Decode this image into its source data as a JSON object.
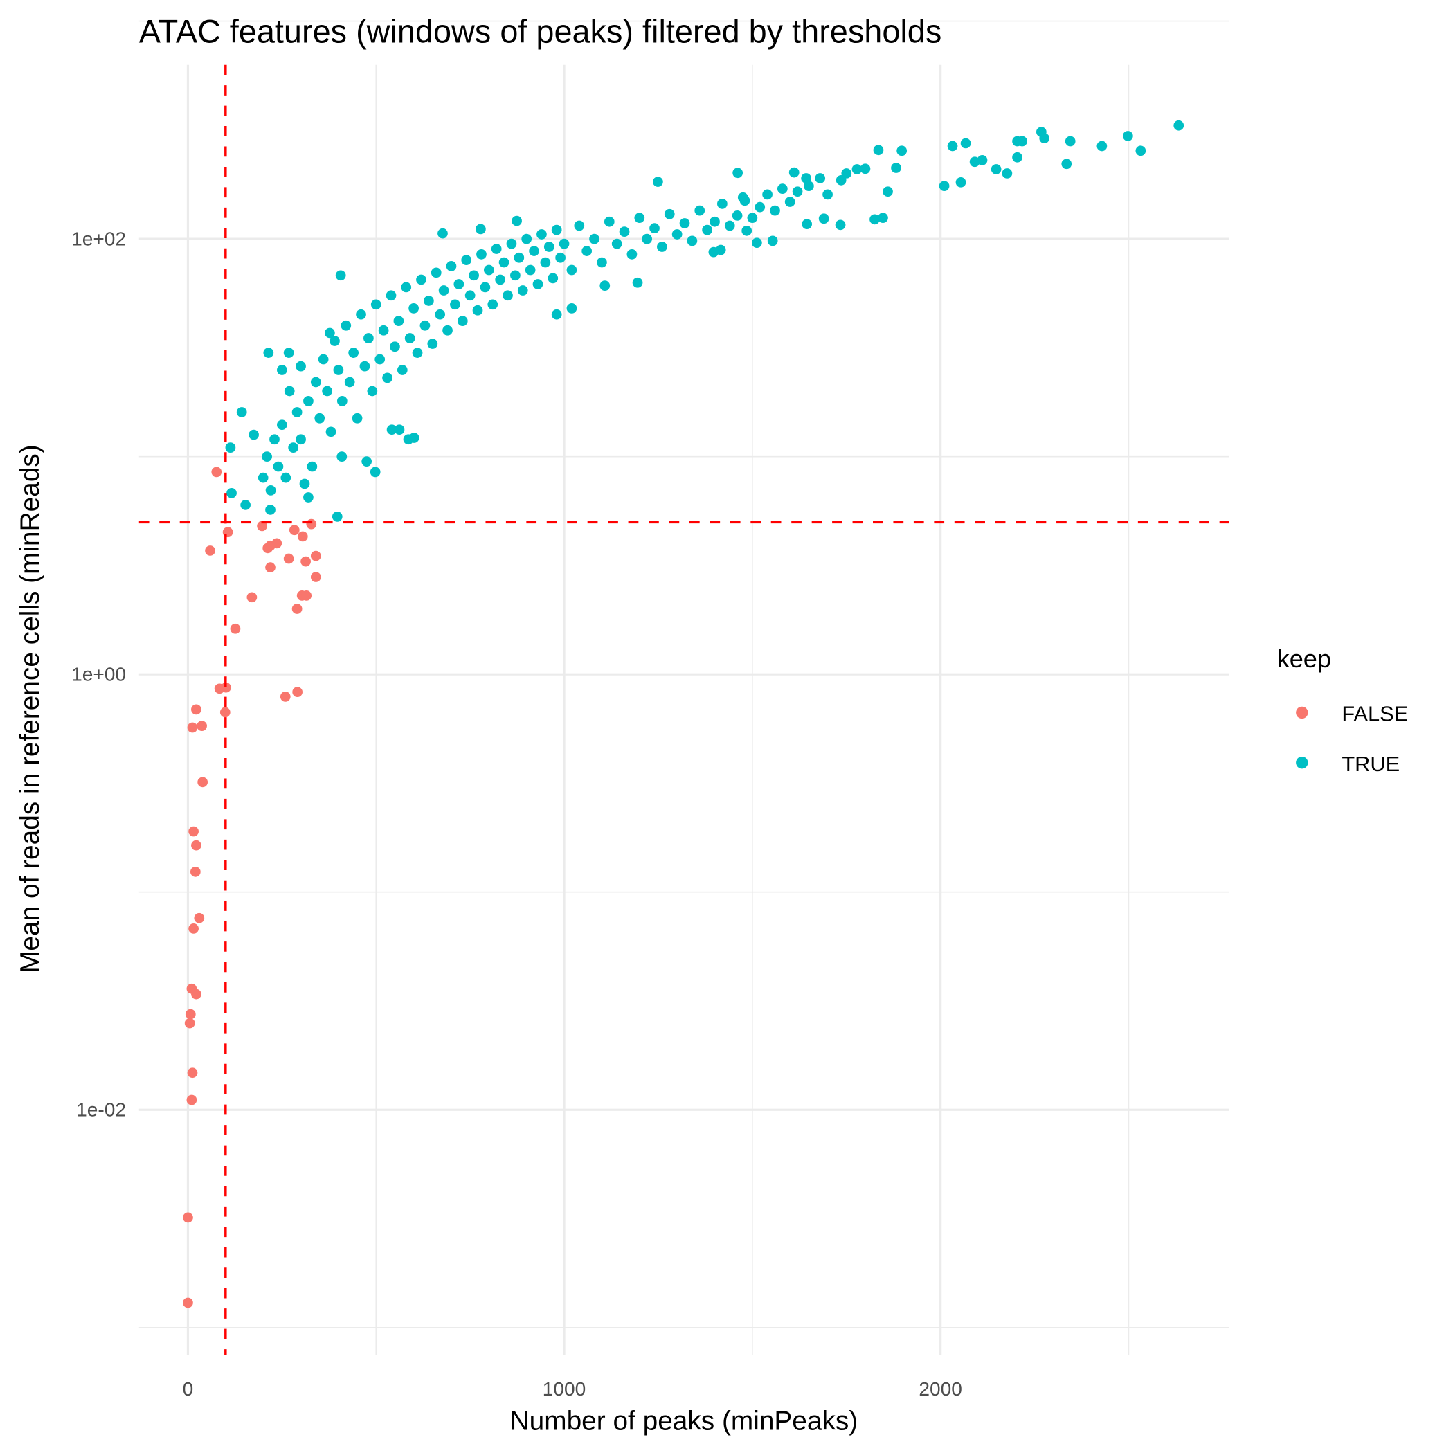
{
  "chart_data": {
    "type": "scatter",
    "title": "ATAC features (windows of peaks) filtered by thresholds",
    "xlabel": "Number of peaks (minPeaks)",
    "ylabel": "Mean of reads in reference cells (minReads)",
    "x_scale": "linear",
    "y_scale": "log10",
    "xlim": [
      -130,
      2766
    ],
    "ylim": [
      0.00075,
      630
    ],
    "x_ticks": [
      0,
      1000,
      2000
    ],
    "x_tick_labels": [
      "0",
      "1000",
      "2000"
    ],
    "y_ticks": [
      100,
      1,
      0.01
    ],
    "y_tick_labels": [
      "1e+02",
      "1e+00",
      "1e-02"
    ],
    "grid": true,
    "thresholds": {
      "minPeaks": 100,
      "minReads": 5,
      "color": "#FF0000",
      "style": "dashed"
    },
    "legend": {
      "title": "keep",
      "placement": "right",
      "entries": [
        {
          "label": "FALSE",
          "color": "#F8766D"
        },
        {
          "label": "TRUE",
          "color": "#00BFC4"
        }
      ]
    },
    "series": [
      {
        "name": "FALSE",
        "color": "#F8766D",
        "points": [
          [
            76,
            8.5
          ],
          [
            106,
            4.5
          ],
          [
            59,
            3.7
          ],
          [
            197,
            4.8
          ],
          [
            212,
            3.8
          ],
          [
            219,
            3.9
          ],
          [
            236,
            4.0
          ],
          [
            219,
            3.1
          ],
          [
            268,
            3.4
          ],
          [
            313,
            3.3
          ],
          [
            340,
            3.5
          ],
          [
            283,
            4.6
          ],
          [
            305,
            4.3
          ],
          [
            328,
            4.9
          ],
          [
            340,
            2.8
          ],
          [
            170,
            2.26
          ],
          [
            290,
            2.0
          ],
          [
            303,
            2.3
          ],
          [
            315,
            2.3
          ],
          [
            126,
            1.62
          ],
          [
            84,
            0.86
          ],
          [
            101,
            0.87
          ],
          [
            99,
            0.67
          ],
          [
            259,
            0.79
          ],
          [
            291,
            0.83
          ],
          [
            22,
            0.69
          ],
          [
            12,
            0.57
          ],
          [
            37,
            0.58
          ],
          [
            39,
            0.32
          ],
          [
            15,
            0.19
          ],
          [
            22,
            0.164
          ],
          [
            20,
            0.124
          ],
          [
            30,
            0.076
          ],
          [
            15,
            0.068
          ],
          [
            10,
            0.036
          ],
          [
            22,
            0.034
          ],
          [
            7,
            0.0275
          ],
          [
            5,
            0.025
          ],
          [
            12,
            0.0148
          ],
          [
            10,
            0.0111
          ],
          [
            0,
            0.0032
          ],
          [
            0,
            0.0013
          ]
        ]
      },
      {
        "name": "TRUE",
        "color": "#00BFC4",
        "points": [
          [
            2633,
            332
          ],
          [
            2498,
            297
          ],
          [
            2532,
            254
          ],
          [
            2429,
            267
          ],
          [
            2345,
            281
          ],
          [
            2335,
            221
          ],
          [
            2268,
            310
          ],
          [
            2276,
            290
          ],
          [
            2204,
            281
          ],
          [
            2217,
            281
          ],
          [
            2204,
            237
          ],
          [
            2177,
            200
          ],
          [
            2067,
            275
          ],
          [
            2032,
            267
          ],
          [
            2010,
            175
          ],
          [
            2054,
            182
          ],
          [
            2091,
            226
          ],
          [
            2111,
            230
          ],
          [
            2148,
            209
          ],
          [
            1897,
            254
          ],
          [
            1835,
            256
          ],
          [
            1860,
            165
          ],
          [
            1825,
            123
          ],
          [
            1847,
            125
          ],
          [
            1734,
            116
          ],
          [
            1690,
            124
          ],
          [
            1645,
            117
          ],
          [
            1736,
            186
          ],
          [
            1882,
            212
          ],
          [
            1778,
            209
          ],
          [
            1611,
            202
          ],
          [
            1643,
            190
          ],
          [
            1554,
            98
          ],
          [
            1512,
            96
          ],
          [
            1485,
            109
          ],
          [
            1475,
            155
          ],
          [
            1461,
            201
          ],
          [
            1249,
            183
          ],
          [
            1397,
            87
          ],
          [
            1416,
            89
          ],
          [
            1195,
            63
          ],
          [
            1108,
            61
          ],
          [
            1020,
            48
          ],
          [
            980,
            45
          ],
          [
            874,
            121
          ],
          [
            778,
            111
          ],
          [
            677,
            106
          ],
          [
            406,
            68
          ],
          [
            397,
            5.3
          ],
          [
            498,
            8.5
          ],
          [
            475,
            9.5
          ],
          [
            409,
            10
          ],
          [
            153,
            6.0
          ],
          [
            116,
            6.8
          ],
          [
            113,
            11
          ],
          [
            219,
            5.7
          ],
          [
            143,
            16
          ],
          [
            214,
            30
          ],
          [
            268,
            30
          ],
          [
            377,
            37
          ],
          [
            175,
            12.6
          ],
          [
            586,
            12
          ],
          [
            601,
            12.2
          ],
          [
            542,
            13.3
          ],
          [
            562,
            13.3
          ],
          [
            300,
            12
          ],
          [
            320,
            18
          ],
          [
            330,
            9
          ],
          [
            340,
            22
          ],
          [
            350,
            15
          ],
          [
            360,
            28
          ],
          [
            370,
            20
          ],
          [
            380,
            13
          ],
          [
            390,
            34
          ],
          [
            400,
            25
          ],
          [
            410,
            18
          ],
          [
            420,
            40
          ],
          [
            430,
            22
          ],
          [
            440,
            30
          ],
          [
            450,
            15
          ],
          [
            460,
            45
          ],
          [
            470,
            26
          ],
          [
            480,
            35
          ],
          [
            490,
            20
          ],
          [
            500,
            50
          ],
          [
            510,
            28
          ],
          [
            520,
            38
          ],
          [
            530,
            23
          ],
          [
            540,
            55
          ],
          [
            550,
            32
          ],
          [
            560,
            42
          ],
          [
            570,
            25
          ],
          [
            580,
            60
          ],
          [
            590,
            35
          ],
          [
            600,
            48
          ],
          [
            610,
            30
          ],
          [
            620,
            65
          ],
          [
            630,
            40
          ],
          [
            640,
            52
          ],
          [
            650,
            33
          ],
          [
            660,
            70
          ],
          [
            670,
            45
          ],
          [
            680,
            58
          ],
          [
            690,
            38
          ],
          [
            700,
            75
          ],
          [
            710,
            50
          ],
          [
            720,
            62
          ],
          [
            730,
            42
          ],
          [
            740,
            80
          ],
          [
            750,
            55
          ],
          [
            760,
            68
          ],
          [
            770,
            47
          ],
          [
            780,
            85
          ],
          [
            790,
            60
          ],
          [
            800,
            72
          ],
          [
            810,
            50
          ],
          [
            820,
            90
          ],
          [
            830,
            65
          ],
          [
            840,
            78
          ],
          [
            850,
            55
          ],
          [
            860,
            95
          ],
          [
            870,
            68
          ],
          [
            880,
            82
          ],
          [
            890,
            58
          ],
          [
            900,
            100
          ],
          [
            910,
            72
          ],
          [
            920,
            88
          ],
          [
            930,
            62
          ],
          [
            940,
            105
          ],
          [
            950,
            78
          ],
          [
            960,
            92
          ],
          [
            970,
            66
          ],
          [
            980,
            110
          ],
          [
            990,
            82
          ],
          [
            1000,
            95
          ],
          [
            1020,
            72
          ],
          [
            1040,
            115
          ],
          [
            1060,
            88
          ],
          [
            1080,
            100
          ],
          [
            1100,
            78
          ],
          [
            1120,
            120
          ],
          [
            1140,
            95
          ],
          [
            1160,
            108
          ],
          [
            1180,
            85
          ],
          [
            1200,
            125
          ],
          [
            1220,
            100
          ],
          [
            1240,
            112
          ],
          [
            1260,
            92
          ],
          [
            1280,
            130
          ],
          [
            1300,
            105
          ],
          [
            1320,
            118
          ],
          [
            1340,
            98
          ],
          [
            1360,
            135
          ],
          [
            1380,
            110
          ],
          [
            1400,
            120
          ],
          [
            1420,
            145
          ],
          [
            1440,
            115
          ],
          [
            1460,
            128
          ],
          [
            1480,
            150
          ],
          [
            1500,
            125
          ],
          [
            1520,
            140
          ],
          [
            1540,
            160
          ],
          [
            1560,
            135
          ],
          [
            1580,
            170
          ],
          [
            1600,
            148
          ],
          [
            1620,
            165
          ],
          [
            1650,
            175
          ],
          [
            1680,
            190
          ],
          [
            1700,
            160
          ],
          [
            1750,
            200
          ],
          [
            1800,
            210
          ],
          [
            200,
            8
          ],
          [
            210,
            10
          ],
          [
            220,
            7
          ],
          [
            230,
            12
          ],
          [
            240,
            9
          ],
          [
            250,
            14
          ],
          [
            260,
            8
          ],
          [
            270,
            20
          ],
          [
            280,
            11
          ],
          [
            290,
            16
          ],
          [
            250,
            25
          ],
          [
            300,
            26
          ],
          [
            320,
            6.5
          ],
          [
            310,
            7.5
          ]
        ]
      }
    ]
  }
}
